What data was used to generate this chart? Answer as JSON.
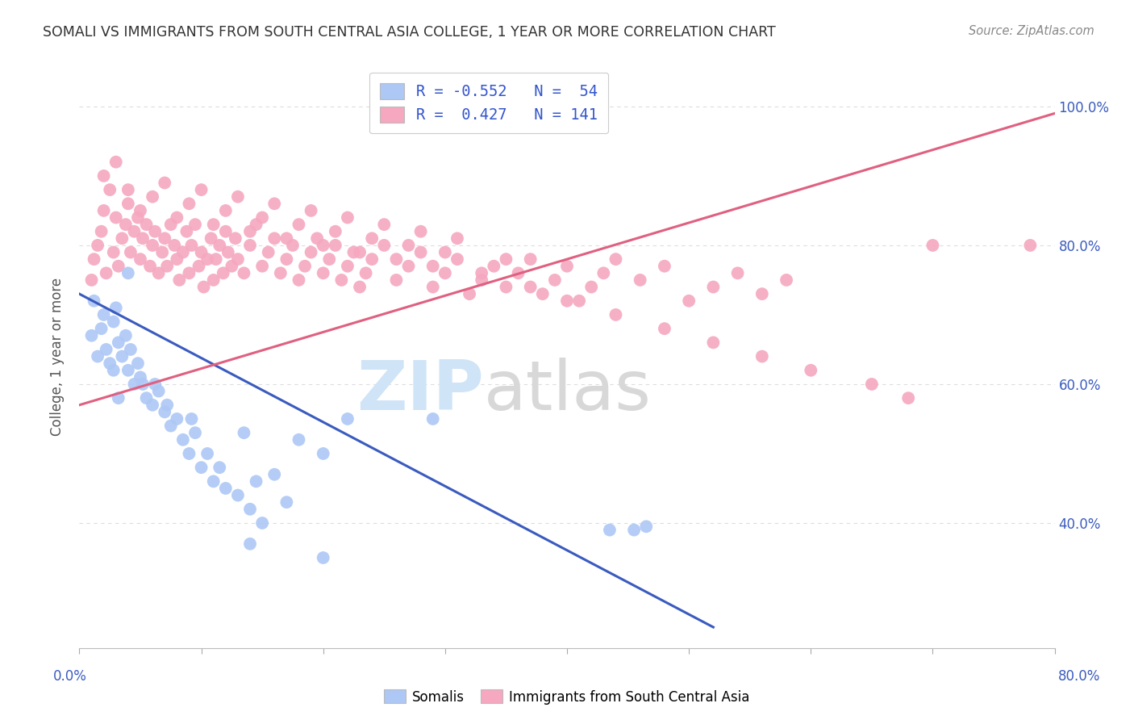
{
  "title": "SOMALI VS IMMIGRANTS FROM SOUTH CENTRAL ASIA COLLEGE, 1 YEAR OR MORE CORRELATION CHART",
  "source": "Source: ZipAtlas.com",
  "ylabel": "College, 1 year or more",
  "legend_label_blue": "Somalis",
  "legend_label_pink": "Immigrants from South Central Asia",
  "blue_color": "#adc8f5",
  "pink_color": "#f5a8c0",
  "blue_line_color": "#3a5bbf",
  "pink_line_color": "#e06080",
  "blue_scatter_x": [
    1.0,
    1.2,
    1.5,
    1.8,
    2.0,
    2.2,
    2.5,
    2.8,
    3.0,
    3.2,
    3.5,
    3.8,
    4.0,
    4.2,
    4.5,
    4.8,
    5.0,
    5.5,
    6.0,
    6.5,
    7.0,
    7.5,
    8.0,
    8.5,
    9.0,
    9.5,
    10.0,
    10.5,
    11.0,
    11.5,
    12.0,
    13.0,
    14.0,
    15.0,
    16.0,
    17.0,
    18.0,
    20.0,
    22.0,
    13.5,
    14.5,
    4.0,
    5.2,
    3.2,
    2.8,
    6.2,
    7.2,
    9.2,
    29.0,
    14.0,
    43.5,
    45.5,
    46.5,
    20.0
  ],
  "blue_scatter_y": [
    67.0,
    72.0,
    64.0,
    68.0,
    70.0,
    65.0,
    63.0,
    69.0,
    71.0,
    66.0,
    64.0,
    67.0,
    62.0,
    65.0,
    60.0,
    63.0,
    61.0,
    58.0,
    57.0,
    59.0,
    56.0,
    54.0,
    55.0,
    52.0,
    50.0,
    53.0,
    48.0,
    50.0,
    46.0,
    48.0,
    45.0,
    44.0,
    42.0,
    40.0,
    47.0,
    43.0,
    52.0,
    50.0,
    55.0,
    53.0,
    46.0,
    76.0,
    60.0,
    58.0,
    62.0,
    60.0,
    57.0,
    55.0,
    55.0,
    37.0,
    39.0,
    39.0,
    39.5,
    35.0
  ],
  "pink_scatter_x": [
    1.0,
    1.2,
    1.5,
    1.8,
    2.0,
    2.2,
    2.5,
    2.8,
    3.0,
    3.2,
    3.5,
    3.8,
    4.0,
    4.2,
    4.5,
    4.8,
    5.0,
    5.2,
    5.5,
    5.8,
    6.0,
    6.2,
    6.5,
    6.8,
    7.0,
    7.2,
    7.5,
    7.8,
    8.0,
    8.2,
    8.5,
    8.8,
    9.0,
    9.2,
    9.5,
    9.8,
    10.0,
    10.2,
    10.5,
    10.8,
    11.0,
    11.2,
    11.5,
    11.8,
    12.0,
    12.2,
    12.5,
    12.8,
    13.0,
    13.5,
    14.0,
    14.5,
    15.0,
    15.5,
    16.0,
    16.5,
    17.0,
    17.5,
    18.0,
    18.5,
    19.0,
    19.5,
    20.0,
    20.5,
    21.0,
    21.5,
    22.0,
    22.5,
    23.0,
    23.5,
    24.0,
    25.0,
    26.0,
    27.0,
    28.0,
    29.0,
    30.0,
    31.0,
    32.0,
    33.0,
    34.0,
    35.0,
    36.0,
    37.0,
    38.0,
    39.0,
    40.0,
    41.0,
    42.0,
    43.0,
    44.0,
    46.0,
    48.0,
    50.0,
    52.0,
    54.0,
    56.0,
    58.0,
    2.0,
    3.0,
    4.0,
    5.0,
    6.0,
    7.0,
    8.0,
    9.0,
    10.0,
    11.0,
    12.0,
    13.0,
    14.0,
    15.0,
    16.0,
    17.0,
    18.0,
    19.0,
    20.0,
    21.0,
    22.0,
    23.0,
    24.0,
    25.0,
    26.0,
    27.0,
    28.0,
    29.0,
    30.0,
    31.0,
    33.0,
    35.0,
    37.0,
    40.0,
    44.0,
    48.0,
    52.0,
    56.0,
    70.0,
    78.0,
    60.0,
    65.0,
    68.0
  ],
  "pink_scatter_y": [
    75.0,
    78.0,
    80.0,
    82.0,
    85.0,
    76.0,
    88.0,
    79.0,
    84.0,
    77.0,
    81.0,
    83.0,
    86.0,
    79.0,
    82.0,
    84.0,
    78.0,
    81.0,
    83.0,
    77.0,
    80.0,
    82.0,
    76.0,
    79.0,
    81.0,
    77.0,
    83.0,
    80.0,
    78.0,
    75.0,
    79.0,
    82.0,
    76.0,
    80.0,
    83.0,
    77.0,
    79.0,
    74.0,
    78.0,
    81.0,
    75.0,
    78.0,
    80.0,
    76.0,
    82.0,
    79.0,
    77.0,
    81.0,
    78.0,
    76.0,
    80.0,
    83.0,
    77.0,
    79.0,
    81.0,
    76.0,
    78.0,
    80.0,
    75.0,
    77.0,
    79.0,
    81.0,
    76.0,
    78.0,
    80.0,
    75.0,
    77.0,
    79.0,
    74.0,
    76.0,
    78.0,
    80.0,
    75.0,
    77.0,
    79.0,
    74.0,
    76.0,
    78.0,
    73.0,
    75.0,
    77.0,
    74.0,
    76.0,
    78.0,
    73.0,
    75.0,
    77.0,
    72.0,
    74.0,
    76.0,
    78.0,
    75.0,
    77.0,
    72.0,
    74.0,
    76.0,
    73.0,
    75.0,
    90.0,
    92.0,
    88.0,
    85.0,
    87.0,
    89.0,
    84.0,
    86.0,
    88.0,
    83.0,
    85.0,
    87.0,
    82.0,
    84.0,
    86.0,
    81.0,
    83.0,
    85.0,
    80.0,
    82.0,
    84.0,
    79.0,
    81.0,
    83.0,
    78.0,
    80.0,
    82.0,
    77.0,
    79.0,
    81.0,
    76.0,
    78.0,
    74.0,
    72.0,
    70.0,
    68.0,
    66.0,
    64.0,
    80.0,
    80.0,
    62.0,
    60.0,
    58.0
  ],
  "blue_line_x": [
    0.0,
    52.0
  ],
  "blue_line_y": [
    73.0,
    25.0
  ],
  "pink_line_x": [
    0.0,
    80.0
  ],
  "pink_line_y": [
    57.0,
    99.0
  ],
  "xmin": 0.0,
  "xmax": 80.0,
  "ymin": 22.0,
  "ymax": 106.0,
  "yticks": [
    40.0,
    60.0,
    80.0,
    100.0
  ],
  "xticks": [
    0,
    10,
    20,
    30,
    40,
    50,
    60,
    70,
    80
  ],
  "background_color": "#ffffff",
  "grid_color": "#dddddd",
  "watermark_zip_color": "#d0e4f7",
  "watermark_atlas_color": "#d8d8d8"
}
